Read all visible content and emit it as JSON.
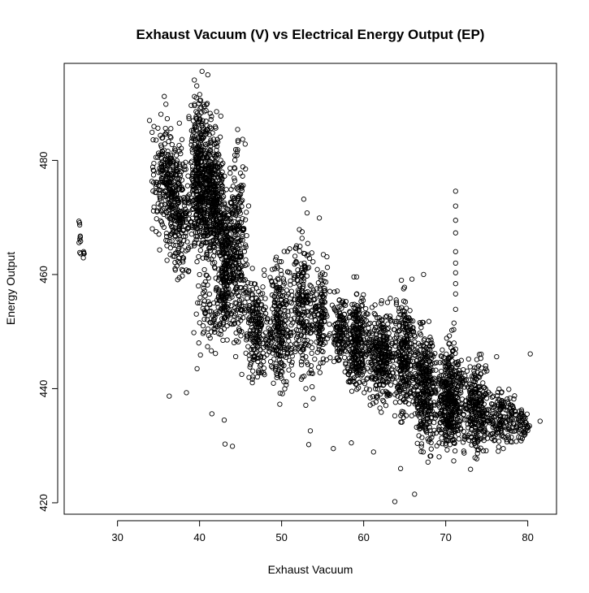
{
  "chart_data": {
    "type": "scatter",
    "title": "Exhaust Vacuum (V) vs Electrical Energy Output (EP)",
    "xlabel": "Exhaust Vacuum",
    "ylabel": "Energy Output",
    "xlim": [
      23.5,
      83.5
    ],
    "ylim": [
      418,
      497
    ],
    "x_ticks": [
      30,
      40,
      50,
      60,
      70,
      80
    ],
    "y_ticks": [
      420,
      440,
      460,
      480
    ],
    "grid": false,
    "marker": "open-circle",
    "marker_color": "#000000",
    "clusters": [
      {
        "x": [
          25.2,
          25.6
        ],
        "y": [
          461,
          471
        ],
        "n": 10
      },
      {
        "x": [
          25.8,
          26.0
        ],
        "y": [
          461,
          467
        ],
        "n": 5
      },
      {
        "x": [
          34.0,
          38.0
        ],
        "y": [
          462,
          491
        ],
        "n": 260
      },
      {
        "x": [
          36.0,
          39.0
        ],
        "y": [
          455,
          485
        ],
        "n": 200
      },
      {
        "x": [
          38.5,
          41.5
        ],
        "y": [
          458,
          496
        ],
        "n": 450
      },
      {
        "x": [
          40.5,
          43.0
        ],
        "y": [
          455,
          492
        ],
        "n": 350
      },
      {
        "x": [
          42.0,
          44.5
        ],
        "y": [
          445,
          480
        ],
        "n": 280
      },
      {
        "x": [
          43.5,
          46.0
        ],
        "y": [
          440,
          488
        ],
        "n": 240
      },
      {
        "x": [
          39.0,
          44.0
        ],
        "y": [
          445,
          462
        ],
        "n": 90
      },
      {
        "x": [
          45.5,
          48.5
        ],
        "y": [
          438,
          463
        ],
        "n": 200
      },
      {
        "x": [
          48.0,
          51.5
        ],
        "y": [
          435,
          468
        ],
        "n": 260
      },
      {
        "x": [
          51.0,
          54.0
        ],
        "y": [
          436,
          472
        ],
        "n": 220
      },
      {
        "x": [
          53.5,
          56.0
        ],
        "y": [
          440,
          465
        ],
        "n": 140
      },
      {
        "x": [
          56.0,
          58.0
        ],
        "y": [
          442,
          460
        ],
        "n": 120
      },
      {
        "x": [
          57.5,
          61.0
        ],
        "y": [
          436,
          460
        ],
        "n": 300
      },
      {
        "x": [
          60.5,
          64.0
        ],
        "y": [
          434,
          458
        ],
        "n": 300
      },
      {
        "x": [
          63.5,
          66.5
        ],
        "y": [
          431,
          460
        ],
        "n": 280
      },
      {
        "x": [
          66.0,
          69.0
        ],
        "y": [
          425,
          455
        ],
        "n": 340
      },
      {
        "x": [
          68.5,
          72.5
        ],
        "y": [
          425,
          452
        ],
        "n": 420
      },
      {
        "x": [
          72.0,
          75.5
        ],
        "y": [
          425,
          448
        ],
        "n": 280
      },
      {
        "x": [
          75.0,
          78.5
        ],
        "y": [
          428,
          442
        ],
        "n": 150
      },
      {
        "x": [
          78.0,
          80.5
        ],
        "y": [
          430,
          438
        ],
        "n": 60
      }
    ],
    "points": [
      {
        "x": 36.3,
        "y": 438.7
      },
      {
        "x": 38.4,
        "y": 439.3
      },
      {
        "x": 39.7,
        "y": 443.5
      },
      {
        "x": 40.1,
        "y": 445.9
      },
      {
        "x": 41.5,
        "y": 435.6
      },
      {
        "x": 43.0,
        "y": 434.5
      },
      {
        "x": 43.1,
        "y": 430.3
      },
      {
        "x": 44.0,
        "y": 429.9
      },
      {
        "x": 53.3,
        "y": 430.2
      },
      {
        "x": 53.5,
        "y": 432.6
      },
      {
        "x": 56.3,
        "y": 429.5
      },
      {
        "x": 58.5,
        "y": 430.5
      },
      {
        "x": 61.2,
        "y": 428.9
      },
      {
        "x": 63.8,
        "y": 420.2
      },
      {
        "x": 66.2,
        "y": 421.5
      },
      {
        "x": 64.5,
        "y": 426.0
      },
      {
        "x": 71.2,
        "y": 474.6
      },
      {
        "x": 71.2,
        "y": 472.0
      },
      {
        "x": 71.2,
        "y": 469.5
      },
      {
        "x": 71.2,
        "y": 467.3
      },
      {
        "x": 71.2,
        "y": 464.0
      },
      {
        "x": 71.2,
        "y": 462.0
      },
      {
        "x": 71.2,
        "y": 460.3
      },
      {
        "x": 71.2,
        "y": 458.4
      },
      {
        "x": 71.2,
        "y": 456.6
      },
      {
        "x": 71.2,
        "y": 453.9
      },
      {
        "x": 71.0,
        "y": 451.5
      },
      {
        "x": 80.3,
        "y": 446.1
      },
      {
        "x": 81.5,
        "y": 434.3
      },
      {
        "x": 45.2,
        "y": 473.0
      },
      {
        "x": 45.6,
        "y": 478.5
      },
      {
        "x": 52.7,
        "y": 473.2
      },
      {
        "x": 53.1,
        "y": 470.8
      },
      {
        "x": 54.6,
        "y": 469.9
      },
      {
        "x": 64.6,
        "y": 459.0
      },
      {
        "x": 67.3,
        "y": 460.0
      },
      {
        "x": 33.9,
        "y": 487.0
      },
      {
        "x": 35.7,
        "y": 491.2
      },
      {
        "x": 40.3,
        "y": 495.6
      },
      {
        "x": 41.0,
        "y": 495.0
      },
      {
        "x": 76.2,
        "y": 445.6
      },
      {
        "x": 78.3,
        "y": 438.2
      }
    ]
  }
}
